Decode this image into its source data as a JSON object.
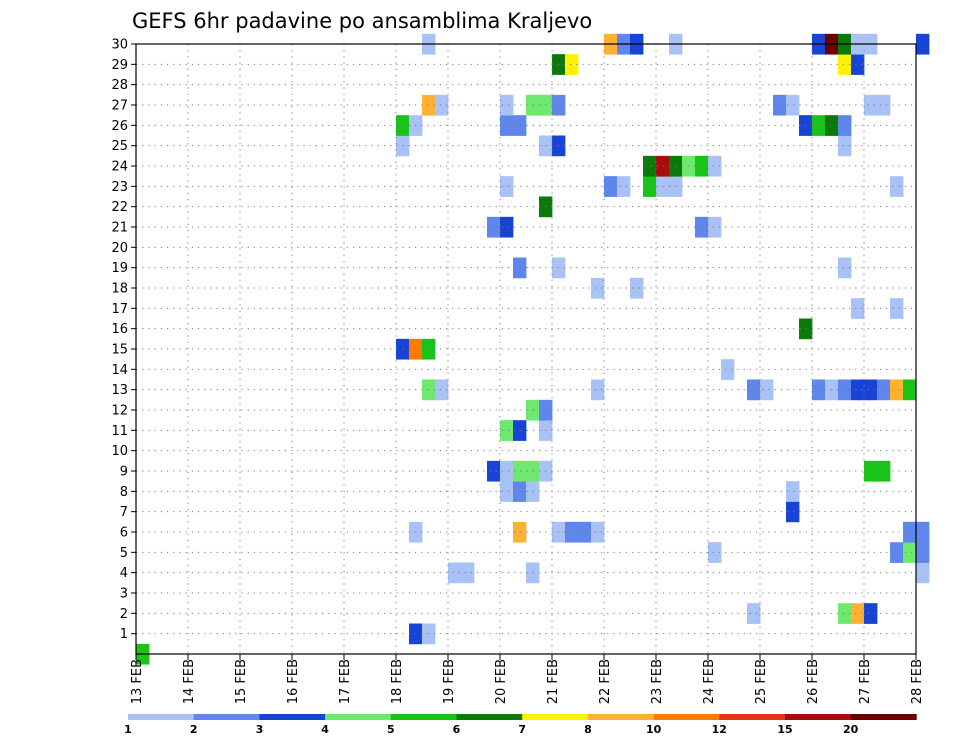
{
  "chart_data": {
    "type": "heatmap",
    "title": "GEFS 6hr padavine po ansamblima Kraljevo",
    "xlabel": "",
    "ylabel": "",
    "x_tick_labels": [
      "13 FEB",
      "14 FEB",
      "15 FEB",
      "16 FEB",
      "17 FEB",
      "18 FEB",
      "19 FEB",
      "20 FEB",
      "21 FEB",
      "22 FEB",
      "23 FEB",
      "24 FEB",
      "25 FEB",
      "26 FEB",
      "27 FEB",
      "28 FEB"
    ],
    "y_tick_labels": [
      "1",
      "2",
      "3",
      "4",
      "5",
      "6",
      "7",
      "8",
      "9",
      "10",
      "11",
      "12",
      "13",
      "14",
      "15",
      "16",
      "17",
      "18",
      "19",
      "20",
      "21",
      "22",
      "23",
      "24",
      "25",
      "26",
      "27",
      "28",
      "29",
      "30"
    ],
    "xlim_days": [
      0,
      15
    ],
    "ylim_members": [
      0,
      30
    ],
    "time_step_hours": 6,
    "grid": true,
    "legend": {
      "placement": "bottom",
      "thresholds": [
        "1",
        "2",
        "3",
        "4",
        "5",
        "6",
        "7",
        "8",
        "10",
        "12",
        "15",
        "20"
      ],
      "colors": [
        "#a9c2f5",
        "#5e86eb",
        "#1844d6",
        "#6ee86e",
        "#17c417",
        "#0b7a0b",
        "#fff200",
        "#ffb232",
        "#ff7a00",
        "#e8321a",
        "#a80c0c",
        "#6b0000"
      ]
    },
    "cells": [
      {
        "t": "13 FEB 00",
        "member": 0,
        "bin": 4
      },
      {
        "t": "18 FEB 06",
        "member": 1,
        "bin": 2
      },
      {
        "t": "18 FEB 12",
        "member": 1,
        "bin": 0
      },
      {
        "t": "24 FEB 18",
        "member": 2,
        "bin": 0
      },
      {
        "t": "26 FEB 12",
        "member": 2,
        "bin": 3
      },
      {
        "t": "26 FEB 18",
        "member": 2,
        "bin": 7
      },
      {
        "t": "27 FEB 00",
        "member": 2,
        "bin": 2
      },
      {
        "t": "19 FEB 00",
        "member": 4,
        "bin": 0
      },
      {
        "t": "19 FEB 06",
        "member": 4,
        "bin": 0
      },
      {
        "t": "20 FEB 12",
        "member": 4,
        "bin": 0
      },
      {
        "t": "28 FEB 00",
        "member": 4,
        "bin": 0
      },
      {
        "t": "24 FEB 00",
        "member": 5,
        "bin": 0
      },
      {
        "t": "27 FEB 12",
        "member": 5,
        "bin": 1
      },
      {
        "t": "27 FEB 18",
        "member": 5,
        "bin": 3
      },
      {
        "t": "28 FEB 00",
        "member": 5,
        "bin": 1
      },
      {
        "t": "18 FEB 06",
        "member": 6,
        "bin": 0
      },
      {
        "t": "20 FEB 06",
        "member": 6,
        "bin": 7
      },
      {
        "t": "21 FEB 00",
        "member": 6,
        "bin": 0
      },
      {
        "t": "21 FEB 06",
        "member": 6,
        "bin": 1
      },
      {
        "t": "21 FEB 12",
        "member": 6,
        "bin": 1
      },
      {
        "t": "21 FEB 18",
        "member": 6,
        "bin": 0
      },
      {
        "t": "27 FEB 18",
        "member": 6,
        "bin": 1
      },
      {
        "t": "28 FEB 00",
        "member": 6,
        "bin": 1
      },
      {
        "t": "25 FEB 12",
        "member": 7,
        "bin": 2
      },
      {
        "t": "20 FEB 00",
        "member": 8,
        "bin": 0
      },
      {
        "t": "20 FEB 06",
        "member": 8,
        "bin": 1
      },
      {
        "t": "20 FEB 12",
        "member": 8,
        "bin": 0
      },
      {
        "t": "25 FEB 12",
        "member": 8,
        "bin": 0
      },
      {
        "t": "19 FEB 18",
        "member": 9,
        "bin": 2
      },
      {
        "t": "20 FEB 00",
        "member": 9,
        "bin": 0
      },
      {
        "t": "20 FEB 06",
        "member": 9,
        "bin": 3
      },
      {
        "t": "20 FEB 12",
        "member": 9,
        "bin": 3
      },
      {
        "t": "20 FEB 18",
        "member": 9,
        "bin": 0
      },
      {
        "t": "27 FEB 00",
        "member": 9,
        "bin": 4
      },
      {
        "t": "27 FEB 06",
        "member": 9,
        "bin": 4
      },
      {
        "t": "20 FEB 00",
        "member": 11,
        "bin": 3
      },
      {
        "t": "20 FEB 06",
        "member": 11,
        "bin": 2
      },
      {
        "t": "20 FEB 18",
        "member": 11,
        "bin": 0
      },
      {
        "t": "20 FEB 12",
        "member": 12,
        "bin": 3
      },
      {
        "t": "20 FEB 18",
        "member": 12,
        "bin": 1
      },
      {
        "t": "18 FEB 12",
        "member": 13,
        "bin": 3
      },
      {
        "t": "18 FEB 18",
        "member": 13,
        "bin": 0
      },
      {
        "t": "21 FEB 18",
        "member": 13,
        "bin": 0
      },
      {
        "t": "24 FEB 18",
        "member": 13,
        "bin": 1
      },
      {
        "t": "25 FEB 00",
        "member": 13,
        "bin": 0
      },
      {
        "t": "26 FEB 00",
        "member": 13,
        "bin": 1
      },
      {
        "t": "26 FEB 06",
        "member": 13,
        "bin": 0
      },
      {
        "t": "26 FEB 12",
        "member": 13,
        "bin": 1
      },
      {
        "t": "26 FEB 18",
        "member": 13,
        "bin": 2
      },
      {
        "t": "27 FEB 00",
        "member": 13,
        "bin": 2
      },
      {
        "t": "27 FEB 06",
        "member": 13,
        "bin": 1
      },
      {
        "t": "27 FEB 12",
        "member": 13,
        "bin": 7
      },
      {
        "t": "27 FEB 18",
        "member": 13,
        "bin": 4
      },
      {
        "t": "24 FEB 06",
        "member": 14,
        "bin": 0
      },
      {
        "t": "18 FEB 00",
        "member": 15,
        "bin": 2
      },
      {
        "t": "18 FEB 06",
        "member": 15,
        "bin": 8
      },
      {
        "t": "18 FEB 12",
        "member": 15,
        "bin": 4
      },
      {
        "t": "25 FEB 18",
        "member": 16,
        "bin": 5
      },
      {
        "t": "26 FEB 18",
        "member": 17,
        "bin": 0
      },
      {
        "t": "27 FEB 12",
        "member": 17,
        "bin": 0
      },
      {
        "t": "21 FEB 18",
        "member": 18,
        "bin": 0
      },
      {
        "t": "22 FEB 12",
        "member": 18,
        "bin": 0
      },
      {
        "t": "20 FEB 06",
        "member": 19,
        "bin": 1
      },
      {
        "t": "21 FEB 00",
        "member": 19,
        "bin": 0
      },
      {
        "t": "26 FEB 12",
        "member": 19,
        "bin": 0
      },
      {
        "t": "19 FEB 18",
        "member": 21,
        "bin": 1
      },
      {
        "t": "20 FEB 00",
        "member": 21,
        "bin": 2
      },
      {
        "t": "23 FEB 18",
        "member": 21,
        "bin": 1
      },
      {
        "t": "24 FEB 00",
        "member": 21,
        "bin": 0
      },
      {
        "t": "20 FEB 18",
        "member": 22,
        "bin": 5
      },
      {
        "t": "20 FEB 00",
        "member": 23,
        "bin": 0
      },
      {
        "t": "22 FEB 00",
        "member": 23,
        "bin": 1
      },
      {
        "t": "22 FEB 06",
        "member": 23,
        "bin": 0
      },
      {
        "t": "22 FEB 18",
        "member": 23,
        "bin": 4
      },
      {
        "t": "23 FEB 00",
        "member": 23,
        "bin": 0
      },
      {
        "t": "23 FEB 06",
        "member": 23,
        "bin": 0
      },
      {
        "t": "27 FEB 12",
        "member": 23,
        "bin": 0
      },
      {
        "t": "22 FEB 18",
        "member": 24,
        "bin": 5
      },
      {
        "t": "23 FEB 00",
        "member": 24,
        "bin": 10
      },
      {
        "t": "23 FEB 06",
        "member": 24,
        "bin": 5
      },
      {
        "t": "23 FEB 12",
        "member": 24,
        "bin": 3
      },
      {
        "t": "23 FEB 18",
        "member": 24,
        "bin": 4
      },
      {
        "t": "24 FEB 00",
        "member": 24,
        "bin": 0
      },
      {
        "t": "18 FEB 00",
        "member": 25,
        "bin": 0
      },
      {
        "t": "20 FEB 18",
        "member": 25,
        "bin": 0
      },
      {
        "t": "21 FEB 00",
        "member": 25,
        "bin": 2
      },
      {
        "t": "26 FEB 12",
        "member": 25,
        "bin": 0
      },
      {
        "t": "18 FEB 00",
        "member": 26,
        "bin": 4
      },
      {
        "t": "18 FEB 06",
        "member": 26,
        "bin": 0
      },
      {
        "t": "20 FEB 00",
        "member": 26,
        "bin": 1
      },
      {
        "t": "20 FEB 06",
        "member": 26,
        "bin": 1
      },
      {
        "t": "25 FEB 18",
        "member": 26,
        "bin": 2
      },
      {
        "t": "26 FEB 00",
        "member": 26,
        "bin": 4
      },
      {
        "t": "26 FEB 06",
        "member": 26,
        "bin": 5
      },
      {
        "t": "26 FEB 12",
        "member": 26,
        "bin": 1
      },
      {
        "t": "18 FEB 12",
        "member": 27,
        "bin": 7
      },
      {
        "t": "18 FEB 18",
        "member": 27,
        "bin": 0
      },
      {
        "t": "20 FEB 00",
        "member": 27,
        "bin": 0
      },
      {
        "t": "20 FEB 12",
        "member": 27,
        "bin": 3
      },
      {
        "t": "20 FEB 18",
        "member": 27,
        "bin": 3
      },
      {
        "t": "21 FEB 00",
        "member": 27,
        "bin": 1
      },
      {
        "t": "25 FEB 06",
        "member": 27,
        "bin": 1
      },
      {
        "t": "25 FEB 12",
        "member": 27,
        "bin": 0
      },
      {
        "t": "27 FEB 00",
        "member": 27,
        "bin": 0
      },
      {
        "t": "27 FEB 06",
        "member": 27,
        "bin": 0
      },
      {
        "t": "21 FEB 00",
        "member": 29,
        "bin": 5
      },
      {
        "t": "21 FEB 06",
        "member": 29,
        "bin": 6
      },
      {
        "t": "26 FEB 12",
        "member": 29,
        "bin": 6
      },
      {
        "t": "26 FEB 18",
        "member": 29,
        "bin": 2
      },
      {
        "t": "18 FEB 12",
        "member": 30,
        "bin": 0
      },
      {
        "t": "22 FEB 00",
        "member": 30,
        "bin": 7
      },
      {
        "t": "22 FEB 06",
        "member": 30,
        "bin": 1
      },
      {
        "t": "22 FEB 12",
        "member": 30,
        "bin": 2
      },
      {
        "t": "23 FEB 06",
        "member": 30,
        "bin": 0
      },
      {
        "t": "26 FEB 00",
        "member": 30,
        "bin": 2
      },
      {
        "t": "26 FEB 06",
        "member": 30,
        "bin": 11
      },
      {
        "t": "26 FEB 12",
        "member": 30,
        "bin": 5
      },
      {
        "t": "26 FEB 18",
        "member": 30,
        "bin": 0
      },
      {
        "t": "27 FEB 00",
        "member": 30,
        "bin": 0
      },
      {
        "t": "28 FEB 00",
        "member": 30,
        "bin": 2
      }
    ]
  }
}
